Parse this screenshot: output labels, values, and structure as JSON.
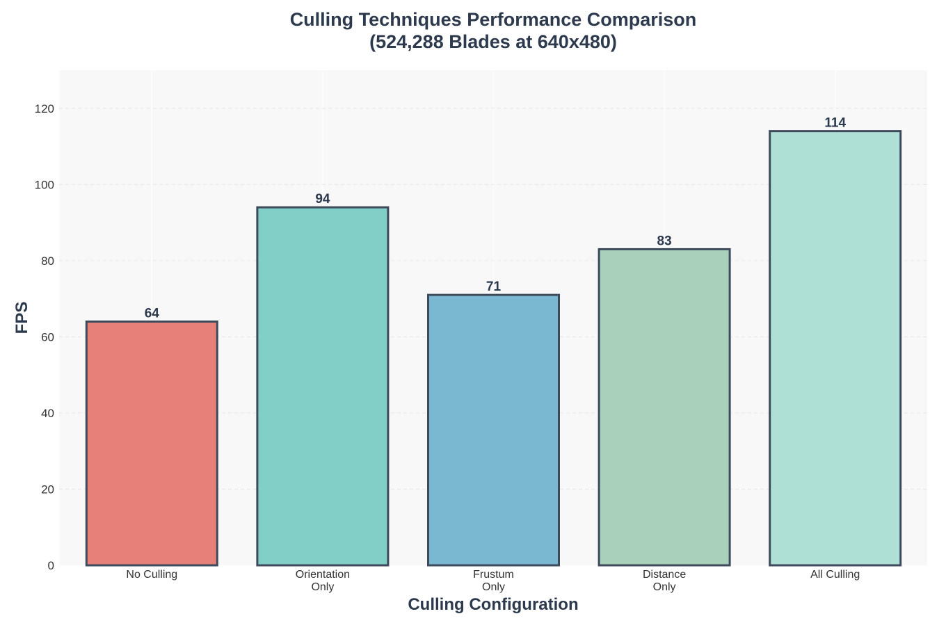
{
  "chart_data": {
    "type": "bar",
    "title_line1": "Culling Techniques Performance Comparison",
    "title_line2": "(524,288 Blades at 640x480)",
    "xlabel": "Culling Configuration",
    "ylabel": "FPS",
    "categories": [
      [
        "No Culling"
      ],
      [
        "Orientation",
        "Only"
      ],
      [
        "Frustum",
        "Only"
      ],
      [
        "Distance",
        "Only"
      ],
      [
        "All Culling"
      ]
    ],
    "values": [
      64,
      94,
      71,
      83,
      114
    ],
    "value_labels": [
      "64",
      "94",
      "71",
      "83",
      "114"
    ],
    "colors": [
      "#e8807a",
      "#82cfc8",
      "#7ab8d2",
      "#a9d0bb",
      "#afe0d6"
    ],
    "edge_color": "#3d4a5c",
    "ylim": [
      0,
      130
    ],
    "yticks": [
      0,
      20,
      40,
      60,
      80,
      100,
      120
    ],
    "grid": true,
    "legend": "none",
    "background": "#f8f8f8",
    "text_color": "#2d3a4d"
  }
}
